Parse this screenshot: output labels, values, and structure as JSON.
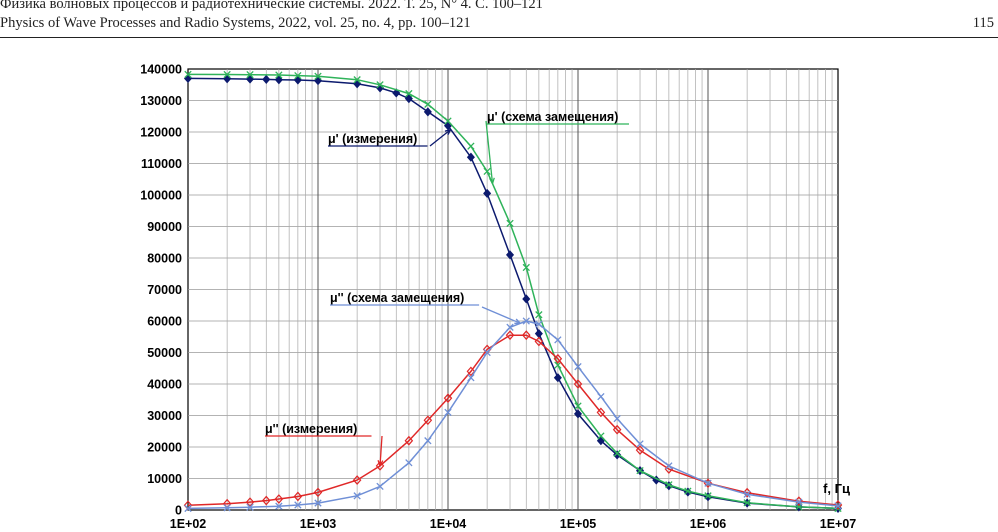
{
  "header": {
    "line1": "Физика волновых процессов и радиотехнические системы. 2022. Т. 25, N° 4. С. 100–121",
    "line2": "Physics of Wave Processes and Radio Systems, 2022, vol. 25, no. 4, pp. 100–121",
    "page_number": "115"
  },
  "chart_data": {
    "type": "line",
    "title": "",
    "xlabel": "f, Гц",
    "ylabel": "",
    "x_scale": "log",
    "xlim": [
      100,
      10000000
    ],
    "ylim": [
      0,
      140000
    ],
    "x_ticks": [
      "1E+02",
      "1E+03",
      "1E+04",
      "1E+05",
      "1E+06",
      "1E+07"
    ],
    "y_ticks": [
      "0",
      "10000",
      "20000",
      "30000",
      "40000",
      "50000",
      "60000",
      "70000",
      "80000",
      "90000",
      "100000",
      "110000",
      "120000",
      "130000",
      "140000"
    ],
    "grid": true,
    "series": [
      {
        "name": "μ' (измерения)",
        "color": "#0c1a6e",
        "marker": "diamond",
        "x": [
          100,
          200,
          300,
          400,
          500,
          700,
          1000,
          2000,
          3000,
          4000,
          5000,
          7000,
          10000,
          15000,
          20000,
          30000,
          40000,
          50000,
          70000,
          100000,
          150000,
          200000,
          300000,
          400000,
          500000,
          700000,
          1000000,
          2000000,
          5000000,
          10000000
        ],
        "values": [
          137000,
          136900,
          136800,
          136700,
          136600,
          136500,
          136300,
          135300,
          134000,
          132400,
          130600,
          126400,
          122000,
          112000,
          100500,
          81000,
          67000,
          56000,
          42000,
          30500,
          22000,
          17500,
          12500,
          9500,
          7700,
          5700,
          4200,
          2200,
          1000,
          500
        ]
      },
      {
        "name": "μ' (схема замещения)",
        "color": "#2fb35a",
        "marker": "x",
        "x": [
          100,
          200,
          300,
          500,
          700,
          1000,
          2000,
          3000,
          5000,
          7000,
          10000,
          15000,
          20000,
          30000,
          40000,
          50000,
          70000,
          100000,
          150000,
          200000,
          300000,
          500000,
          700000,
          1000000,
          2000000,
          5000000,
          10000000
        ],
        "values": [
          138300,
          138250,
          138200,
          138100,
          137900,
          137700,
          136600,
          135000,
          132200,
          128800,
          123500,
          115500,
          107500,
          91000,
          77000,
          62000,
          46000,
          33000,
          23500,
          18000,
          12500,
          8000,
          6000,
          4500,
          2300,
          1000,
          500
        ]
      },
      {
        "name": "μ'' (измерения)",
        "color": "#e02828",
        "marker": "diamond-open",
        "x": [
          100,
          200,
          300,
          400,
          500,
          700,
          1000,
          2000,
          3000,
          5000,
          7000,
          10000,
          15000,
          20000,
          30000,
          40000,
          50000,
          70000,
          100000,
          150000,
          200000,
          300000,
          500000,
          1000000,
          2000000,
          5000000,
          10000000
        ],
        "values": [
          1500,
          2000,
          2500,
          3000,
          3500,
          4300,
          5600,
          9500,
          14000,
          22000,
          28500,
          35500,
          44000,
          51000,
          55500,
          55500,
          53500,
          48000,
          40000,
          31000,
          25500,
          19000,
          13000,
          8500,
          5500,
          2800,
          1600
        ]
      },
      {
        "name": "μ'' (схема замещения)",
        "color": "#6f8fd6",
        "marker": "x",
        "x": [
          100,
          200,
          300,
          500,
          700,
          1000,
          2000,
          3000,
          5000,
          7000,
          10000,
          15000,
          20000,
          30000,
          40000,
          50000,
          70000,
          100000,
          150000,
          200000,
          300000,
          500000,
          1000000,
          2000000,
          5000000,
          10000000
        ],
        "values": [
          500,
          700,
          900,
          1200,
          1600,
          2200,
          4500,
          7500,
          15000,
          22000,
          31000,
          42000,
          50000,
          58000,
          60000,
          59000,
          54000,
          45500,
          36000,
          29000,
          21000,
          14000,
          8500,
          5000,
          2500,
          1300
        ]
      }
    ],
    "annotations": [
      {
        "text": "μ' (схема замещения)",
        "color": "#2fb35a",
        "series": 1,
        "at_x": 22000
      },
      {
        "text": "μ' (измерения)",
        "color": "#0c1a6e",
        "series": 0,
        "at_x": 10500
      },
      {
        "text": "μ'' (схема замещения)",
        "color": "#6f8fd6",
        "series": 3,
        "at_x": 36000
      },
      {
        "text": "μ'' (измерения)",
        "color": "#e02828",
        "series": 2,
        "at_x": 3000
      }
    ]
  }
}
